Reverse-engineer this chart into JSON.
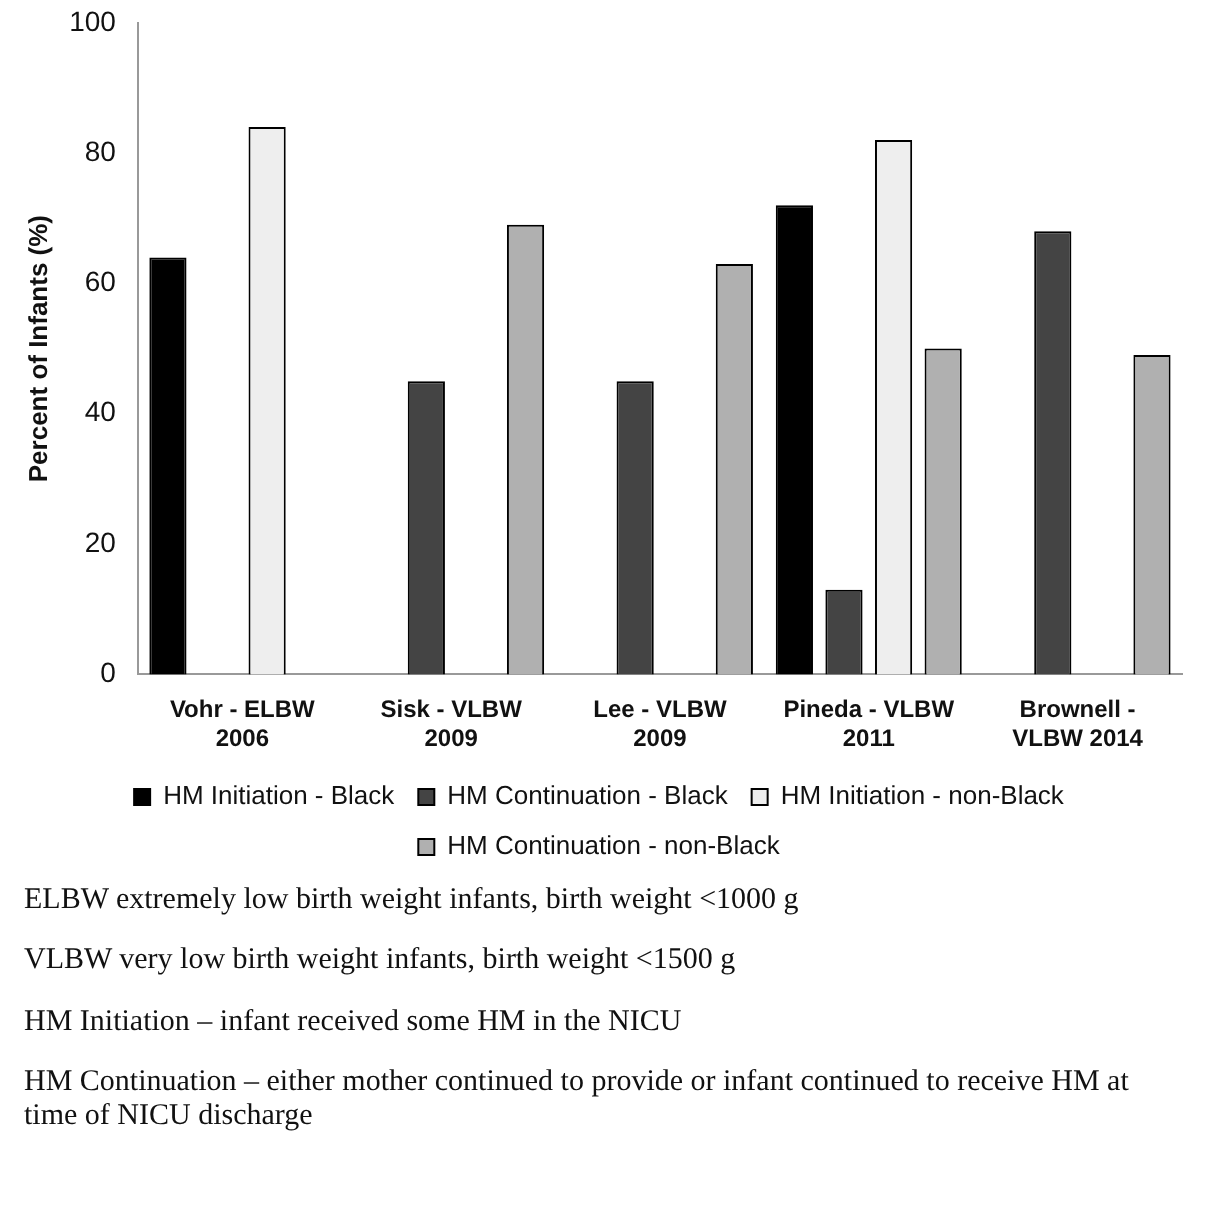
{
  "chart_data": {
    "type": "bar",
    "ylabel": "Percent of Infants (%)",
    "categories": [
      "Vohr - ELBW 2006",
      "Sisk - VLBW 2009",
      "Lee - VLBW 2009",
      "Pineda - VLBW 2011",
      "Brownell - VLBW 2014"
    ],
    "series": [
      {
        "name": "HM Initiation - Black",
        "color": "#000000",
        "values": [
          64,
          null,
          null,
          72,
          null
        ]
      },
      {
        "name": "HM Continuation - Black",
        "color": "#444444",
        "values": [
          null,
          45,
          45,
          13,
          68
        ]
      },
      {
        "name": "HM Initiation - non-Black",
        "color": "#eeeeee",
        "values": [
          84,
          null,
          null,
          82,
          null
        ]
      },
      {
        "name": "HM Continuation - non-Black",
        "color": "#b0b0b0",
        "values": [
          null,
          69,
          63,
          50,
          49
        ]
      }
    ],
    "ylim": [
      0,
      100
    ],
    "yticks": [
      0,
      20,
      40,
      60,
      80,
      100
    ],
    "grid": false,
    "legend": "bottom",
    "annotations": [
      "ELBW extremely low birth weight infants, birth weight <1000 g",
      "VLBW very low birth weight infants, birth weight <1500 g",
      "HM Initiation – infant received some HM in the NICU",
      "HM Continuation – either mother continued to provide or infant continued to receive HM at time of NICU discharge"
    ]
  }
}
